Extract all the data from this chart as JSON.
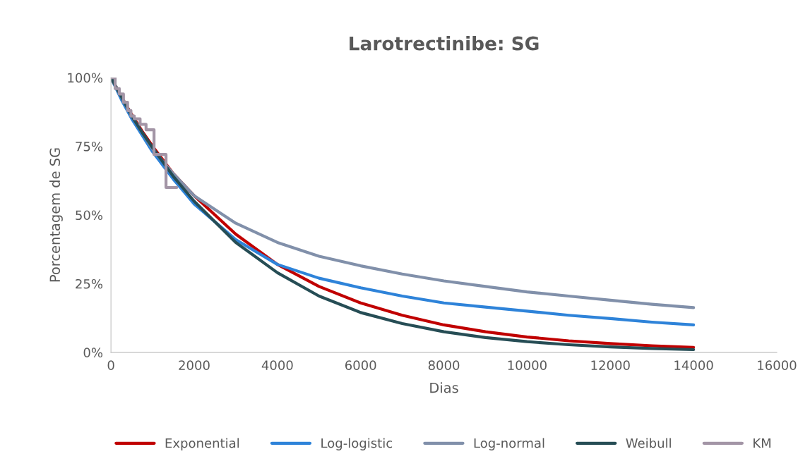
{
  "chart_data": {
    "type": "line",
    "title": "Larotrectinibe: SG",
    "xlabel": "Dias",
    "ylabel": "Porcentagem de SG",
    "x": [
      0,
      250,
      500,
      750,
      1000,
      1500,
      2000,
      3000,
      4000,
      5000,
      6000,
      7000,
      8000,
      9000,
      10000,
      11000,
      12000,
      13000,
      14000
    ],
    "series": [
      {
        "name": "Exponential",
        "color": "#c00000",
        "values": [
          100,
          93,
          86.5,
          80.5,
          75,
          65,
          57,
          43,
          32,
          24,
          18,
          13.5,
          10,
          7.5,
          5.6,
          4.2,
          3.2,
          2.4,
          1.8
        ]
      },
      {
        "name": "Log-logistic",
        "color": "#2e83d9",
        "values": [
          100,
          92,
          85,
          79,
          73,
          63,
          54,
          41,
          32,
          27,
          23.5,
          20.5,
          18,
          16.5,
          15,
          13.5,
          12.3,
          11,
          10
        ]
      },
      {
        "name": "Log-normal",
        "color": "#8190aa",
        "values": [
          100,
          93,
          86,
          80,
          74,
          65,
          57,
          47,
          40,
          35,
          31.5,
          28.5,
          26,
          24,
          22,
          20.5,
          19,
          17.5,
          16.3
        ]
      },
      {
        "name": "Weibull",
        "color": "#264d55",
        "values": [
          100,
          93,
          86,
          80,
          74.5,
          64,
          55,
          40,
          29,
          20.5,
          14.5,
          10.5,
          7.5,
          5.4,
          3.9,
          2.8,
          2.0,
          1.4,
          1.0
        ]
      },
      {
        "name": "KM",
        "type": "step",
        "color": "#a395a6",
        "x": [
          0,
          100,
          200,
          300,
          400,
          480,
          560,
          700,
          843,
          1035,
          1323,
          1580
        ],
        "values": [
          100,
          96,
          94,
          91,
          88,
          86,
          85,
          83,
          81,
          72,
          60,
          60
        ]
      }
    ],
    "xlim": [
      0,
      16000
    ],
    "xticks": [
      0,
      2000,
      4000,
      6000,
      8000,
      10000,
      12000,
      14000,
      16000
    ],
    "ylim": [
      0,
      100
    ],
    "yticks": [
      {
        "value": 0,
        "label": "0%"
      },
      {
        "value": 25,
        "label": "25%"
      },
      {
        "value": 50,
        "label": "50%"
      },
      {
        "value": 75,
        "label": "75%"
      },
      {
        "value": 100,
        "label": "100%"
      }
    ],
    "grid": false,
    "legend": "bottom"
  }
}
